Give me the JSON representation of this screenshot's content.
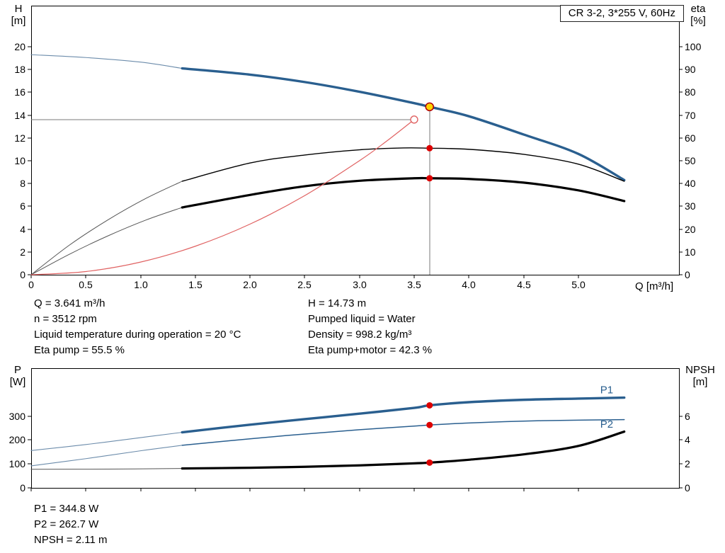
{
  "title_box": "CR 3-2, 3*255 V, 60Hz",
  "colors": {
    "blue": "#2a5f8f",
    "blue_thin": "#6c8cab",
    "red": "#dd0000",
    "red_curve": "#e06262",
    "yellow": "#ffd400",
    "guide": "#7a7a7a",
    "frame": "#000000"
  },
  "axis_labels": {
    "h_name": "H",
    "h_unit": "[m]",
    "eta_name": "eta",
    "eta_unit": "[%]",
    "q": "Q [m³/h]",
    "p_name": "P",
    "p_unit": "[W]",
    "npsh_name": "NPSH",
    "npsh_unit": "[m]"
  },
  "info_top": {
    "left": [
      "Q = 3.641 m³/h",
      "n = 3512 rpm",
      "Liquid temperature during operation = 20 °C",
      "Eta pump = 55.5 %"
    ],
    "right": [
      "H = 14.73 m",
      "Pumped liquid = Water",
      "Density = 998.2 kg/m³",
      "Eta pump+motor = 42.3 %"
    ]
  },
  "info_bottom": [
    "P1 = 344.8 W",
    "P2 = 262.7 W",
    "NPSH = 2.11 m"
  ],
  "chart_data": [
    {
      "id": "qh-eta",
      "type": "line",
      "title": "CR 3-2, 3*255 V, 60Hz",
      "x_axis": {
        "label": "Q [m³/h]",
        "range": [
          0,
          5.92
        ],
        "ticks": [
          0,
          0.5,
          1,
          1.5,
          2,
          2.5,
          3,
          3.5,
          4,
          4.5,
          5
        ],
        "tick_labels": [
          "0",
          "0.5",
          "1.0",
          "1.5",
          "2.0",
          "2.5",
          "3.0",
          "3.5",
          "4.0",
          "4.5",
          "5.0"
        ]
      },
      "y_left": {
        "label": "H [m]",
        "range": [
          0,
          23.6
        ],
        "ticks": [
          0,
          2,
          4,
          6,
          8,
          10,
          12,
          14,
          16,
          18,
          20
        ]
      },
      "y_right": {
        "label": "eta [%]",
        "range": [
          0,
          118
        ],
        "ticks": [
          0,
          10,
          20,
          30,
          40,
          50,
          60,
          70,
          80,
          90,
          100
        ]
      },
      "series": [
        {
          "name": "qh-extension",
          "axis": "left",
          "style": "thin-blue",
          "points": [
            [
              0,
              19.3
            ],
            [
              0.5,
              19.05
            ],
            [
              1.0,
              18.65
            ],
            [
              1.38,
              18.1
            ]
          ]
        },
        {
          "name": "qh-curve",
          "axis": "left",
          "style": "thick-blue",
          "points": [
            [
              1.38,
              18.1
            ],
            [
              2.0,
              17.55
            ],
            [
              2.5,
              16.9
            ],
            [
              3.0,
              16.05
            ],
            [
              3.5,
              15.05
            ],
            [
              3.641,
              14.73
            ],
            [
              4.0,
              13.9
            ],
            [
              4.5,
              12.3
            ],
            [
              5.0,
              10.6
            ],
            [
              5.42,
              8.3
            ]
          ]
        },
        {
          "name": "eta-pump-extension",
          "axis": "right",
          "style": "thin-gray",
          "points": [
            [
              0,
              0
            ],
            [
              0.35,
              13
            ],
            [
              0.7,
              24
            ],
            [
              1.05,
              33.5
            ],
            [
              1.38,
              41
            ]
          ]
        },
        {
          "name": "eta-pump-curve",
          "axis": "right",
          "style": "thin-black",
          "points": [
            [
              1.38,
              41
            ],
            [
              2.0,
              49
            ],
            [
              2.5,
              52.5
            ],
            [
              3.0,
              54.8
            ],
            [
              3.4,
              55.6
            ],
            [
              3.641,
              55.5
            ],
            [
              4.0,
              55.0
            ],
            [
              4.5,
              52.8
            ],
            [
              5.0,
              48.5
            ],
            [
              5.42,
              41
            ]
          ]
        },
        {
          "name": "eta-pump-motor-extension",
          "axis": "right",
          "style": "thin-gray",
          "points": [
            [
              0,
              0
            ],
            [
              0.35,
              9
            ],
            [
              0.7,
              17
            ],
            [
              1.05,
              24
            ],
            [
              1.38,
              29.5
            ]
          ]
        },
        {
          "name": "eta-pump-motor-curve",
          "axis": "right",
          "style": "thick-black",
          "points": [
            [
              1.38,
              29.5
            ],
            [
              2.0,
              35
            ],
            [
              2.5,
              38.8
            ],
            [
              3.0,
              41.2
            ],
            [
              3.5,
              42.3
            ],
            [
              3.641,
              42.3
            ],
            [
              4.0,
              42.0
            ],
            [
              4.5,
              40.4
            ],
            [
              5.0,
              37
            ],
            [
              5.42,
              32.3
            ]
          ]
        },
        {
          "name": "affinity-curve",
          "axis": "left",
          "style": "thin-red",
          "points": [
            [
              0,
              0
            ],
            [
              0.5,
              0.28
            ],
            [
              1.0,
              1.11
            ],
            [
              1.5,
              2.5
            ],
            [
              2.0,
              4.44
            ],
            [
              2.5,
              6.94
            ],
            [
              3.0,
              10.0
            ],
            [
              3.25,
              11.73
            ],
            [
              3.5,
              13.61
            ]
          ]
        }
      ],
      "guides": [
        {
          "name": "duty-vline",
          "type": "v",
          "x": 3.641,
          "to": 14.73,
          "axis": "left"
        },
        {
          "name": "duty-hline",
          "type": "h",
          "y": 13.61,
          "to": 3.5,
          "axis": "left"
        }
      ],
      "markers": [
        {
          "name": "duty-point",
          "x": 3.641,
          "y": 14.73,
          "axis": "left",
          "kind": "yellow"
        },
        {
          "name": "requested-duty-point",
          "x": 3.5,
          "y": 13.61,
          "axis": "left",
          "kind": "open-red"
        },
        {
          "name": "eta-pump-point",
          "x": 3.641,
          "y": 55.5,
          "axis": "right",
          "kind": "red"
        },
        {
          "name": "eta-pump-motor-point",
          "x": 3.641,
          "y": 42.3,
          "axis": "right",
          "kind": "red"
        }
      ],
      "labels": []
    },
    {
      "id": "power-npsh",
      "type": "line",
      "x_axis": {
        "range": [
          0,
          5.92
        ],
        "ticks": [
          0,
          0.5,
          1,
          1.5,
          2,
          2.5,
          3,
          3.5,
          4,
          4.5,
          5
        ]
      },
      "y_left": {
        "label": "P [W]",
        "range": [
          0,
          500
        ],
        "ticks": [
          0,
          100,
          200,
          300
        ]
      },
      "y_right": {
        "label": "NPSH [m]",
        "range": [
          0,
          10
        ],
        "ticks": [
          0,
          2,
          4,
          6
        ]
      },
      "series": [
        {
          "name": "p1-extension",
          "axis": "left",
          "style": "thin-blue",
          "points": [
            [
              0,
              156
            ],
            [
              0.5,
              181
            ],
            [
              1.0,
              210
            ],
            [
              1.38,
              232
            ]
          ]
        },
        {
          "name": "p1-curve",
          "axis": "left",
          "style": "thick-blue",
          "points": [
            [
              1.38,
              232
            ],
            [
              2.0,
              264
            ],
            [
              2.5,
              287
            ],
            [
              3.0,
              310
            ],
            [
              3.5,
              334
            ],
            [
              3.641,
              344.8
            ],
            [
              4.0,
              358
            ],
            [
              4.5,
              368
            ],
            [
              5.0,
              373
            ],
            [
              5.42,
              377
            ]
          ]
        },
        {
          "name": "p2-extension",
          "axis": "left",
          "style": "thin-blue",
          "points": [
            [
              0,
              92
            ],
            [
              0.5,
              122
            ],
            [
              1.0,
              155
            ],
            [
              1.38,
              178
            ]
          ]
        },
        {
          "name": "p2-curve",
          "axis": "left",
          "style": "medium-blue",
          "points": [
            [
              1.38,
              178
            ],
            [
              2.0,
              205
            ],
            [
              2.5,
              225
            ],
            [
              3.0,
              243
            ],
            [
              3.5,
              258
            ],
            [
              3.641,
              262.7
            ],
            [
              4.0,
              271
            ],
            [
              4.5,
              279
            ],
            [
              5.0,
              283
            ],
            [
              5.42,
              285
            ]
          ]
        },
        {
          "name": "npsh-extension",
          "axis": "right",
          "style": "thin-gray",
          "points": [
            [
              0,
              1.55
            ],
            [
              0.7,
              1.57
            ],
            [
              1.38,
              1.62
            ]
          ]
        },
        {
          "name": "npsh-curve",
          "axis": "right",
          "style": "thick-black",
          "points": [
            [
              1.38,
              1.62
            ],
            [
              2.0,
              1.68
            ],
            [
              2.5,
              1.76
            ],
            [
              3.0,
              1.88
            ],
            [
              3.5,
              2.05
            ],
            [
              3.641,
              2.11
            ],
            [
              4.0,
              2.35
            ],
            [
              4.5,
              2.8
            ],
            [
              5.0,
              3.5
            ],
            [
              5.42,
              4.7
            ]
          ]
        }
      ],
      "guides": [],
      "markers": [
        {
          "name": "p1-point",
          "x": 3.641,
          "y": 344.8,
          "axis": "left",
          "kind": "red"
        },
        {
          "name": "p2-point",
          "x": 3.641,
          "y": 262.7,
          "axis": "left",
          "kind": "red"
        },
        {
          "name": "npsh-point",
          "x": 3.641,
          "y": 2.11,
          "axis": "right",
          "kind": "red"
        }
      ],
      "labels": [
        {
          "text": "P1",
          "x": 5.2,
          "y": 395,
          "axis": "left"
        },
        {
          "text": "P2",
          "x": 5.2,
          "y": 252,
          "axis": "left"
        }
      ]
    }
  ]
}
